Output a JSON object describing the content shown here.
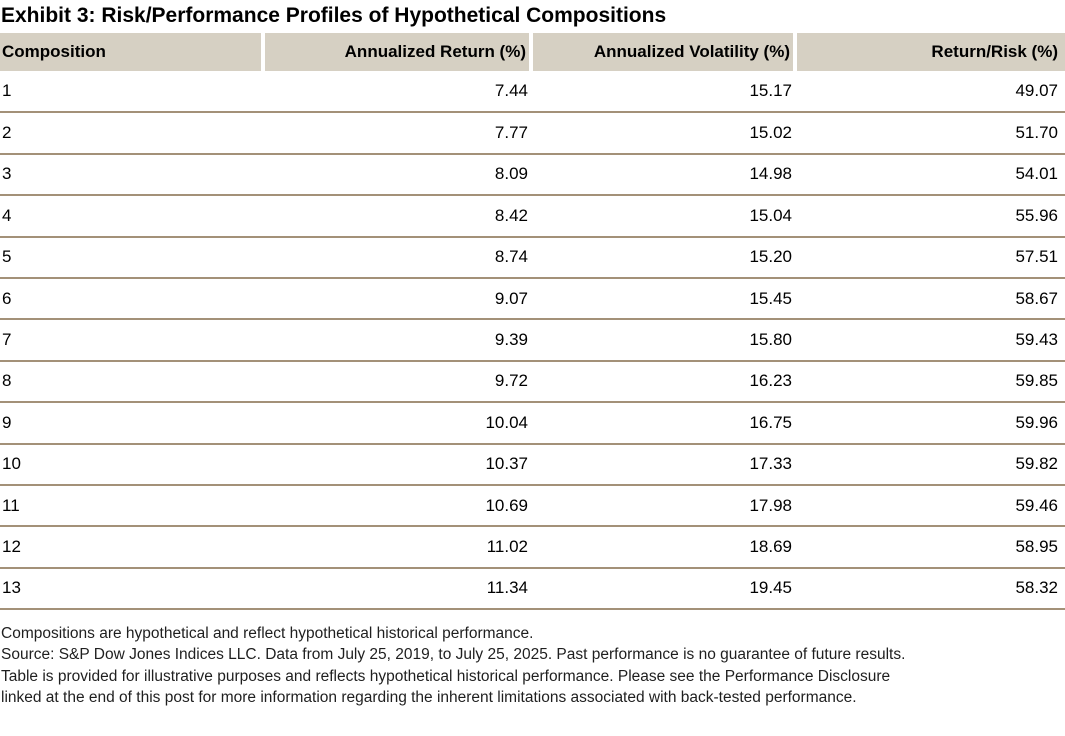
{
  "title": "Exhibit 3: Risk/Performance Profiles of Hypothetical Compositions",
  "chart_data": {
    "type": "table",
    "title": "Exhibit 3: Risk/Performance Profiles of Hypothetical Compositions",
    "columns": [
      "Composition",
      "Annualized Return (%)",
      "Annualized Volatility (%)",
      "Return/Risk (%)"
    ],
    "rows": [
      [
        "1",
        "7.44",
        "15.17",
        "49.07"
      ],
      [
        "2",
        "7.77",
        "15.02",
        "51.70"
      ],
      [
        "3",
        "8.09",
        "14.98",
        "54.01"
      ],
      [
        "4",
        "8.42",
        "15.04",
        "55.96"
      ],
      [
        "5",
        "8.74",
        "15.20",
        "57.51"
      ],
      [
        "6",
        "9.07",
        "15.45",
        "58.67"
      ],
      [
        "7",
        "9.39",
        "15.80",
        "59.43"
      ],
      [
        "8",
        "9.72",
        "16.23",
        "59.85"
      ],
      [
        "9",
        "10.04",
        "16.75",
        "59.96"
      ],
      [
        "10",
        "10.37",
        "17.33",
        "59.82"
      ],
      [
        "11",
        "10.69",
        "17.98",
        "59.46"
      ],
      [
        "12",
        "11.02",
        "18.69",
        "58.95"
      ],
      [
        "13",
        "11.34",
        "19.45",
        "58.32"
      ]
    ],
    "layout": {
      "header_background": "#d6d0c3",
      "row_separator": "#a39178",
      "grid": "horizontal-only"
    }
  },
  "footnotes": [
    "Compositions are hypothetical and reflect hypothetical historical performance.",
    "Source: S&P Dow Jones Indices LLC. Data from July 25, 2019, to July 25, 2025. Past performance is no guarantee of future results.",
    "Table is provided for illustrative purposes and reflects hypothetical historical performance. Please see the Performance Disclosure",
    "linked at the end of this post for more information regarding the inherent limitations associated with back-tested performance."
  ],
  "colors": {
    "header_bg": "#d6d0c3",
    "row_line": "#a39178",
    "text_color": "#000000",
    "footnote_color": "#1f1f1f"
  }
}
